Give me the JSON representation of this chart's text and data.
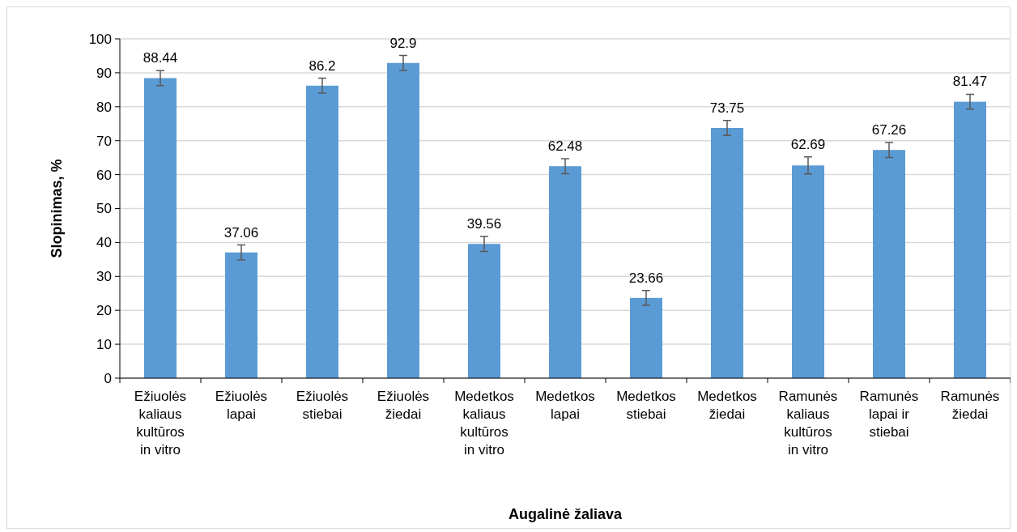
{
  "chart_data": {
    "type": "bar",
    "xlabel": "Augalinė žaliava",
    "ylabel": "Slopinimas, %",
    "categories": [
      "Ežiuolės kaliaus kultūros in vitro",
      "Ežiuolės lapai",
      "Ežiuolės stiebai",
      "Ežiuolės žiedai",
      "Medetkos kaliaus kultūros in vitro",
      "Medetkos lapai",
      "Medetkos stiebai",
      "Medetkos žiedai",
      "Ramunės kaliaus kultūros in vitro",
      "Ramunės lapai ir stiebai",
      "Ramunės žiedai"
    ],
    "values": [
      88.44,
      37.06,
      86.2,
      92.9,
      39.56,
      62.48,
      23.66,
      73.75,
      62.69,
      67.26,
      81.47
    ],
    "errors": [
      2.2,
      2.2,
      2.2,
      2.2,
      2.2,
      2.2,
      2.2,
      2.2,
      2.5,
      2.2,
      2.2
    ],
    "color": "#5b9bd5",
    "data_labels": true,
    "grid": "y",
    "ylim": [
      0,
      100
    ],
    "yticks": [
      0,
      10,
      20,
      30,
      40,
      50,
      60,
      70,
      80,
      90,
      100
    ]
  }
}
